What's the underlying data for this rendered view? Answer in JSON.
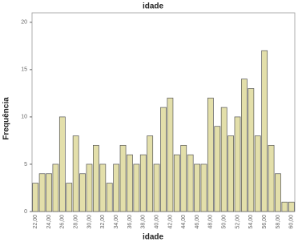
{
  "chart_data": {
    "type": "bar",
    "title": "idade",
    "x_label": "idade",
    "y_label": "Frequência",
    "categories": [
      "22,00",
      null,
      "24,00",
      null,
      "26,00",
      null,
      "28,00",
      null,
      "30,00",
      null,
      "32,00",
      null,
      "34,00",
      null,
      "36,00",
      null,
      "38,00",
      null,
      "40,00",
      null,
      "42,00",
      null,
      "44,00",
      null,
      "46,00",
      null,
      "48,00",
      null,
      "50,00",
      null,
      "52,00",
      null,
      "54,00",
      null,
      "56,00",
      null,
      "58,00",
      null,
      "60,00"
    ],
    "values": [
      3,
      4,
      4,
      5,
      10,
      3,
      8,
      4,
      5,
      7,
      5,
      3,
      5,
      7,
      6,
      5,
      6,
      8,
      5,
      11,
      12,
      6,
      7,
      6,
      5,
      5,
      12,
      9,
      11,
      8,
      10,
      14,
      13,
      8,
      17,
      7,
      4,
      1,
      1
    ],
    "color": "#e3dfaa",
    "ylim": [
      0,
      21
    ],
    "yticks": [
      0,
      5,
      10,
      15,
      20
    ],
    "grid": false
  }
}
